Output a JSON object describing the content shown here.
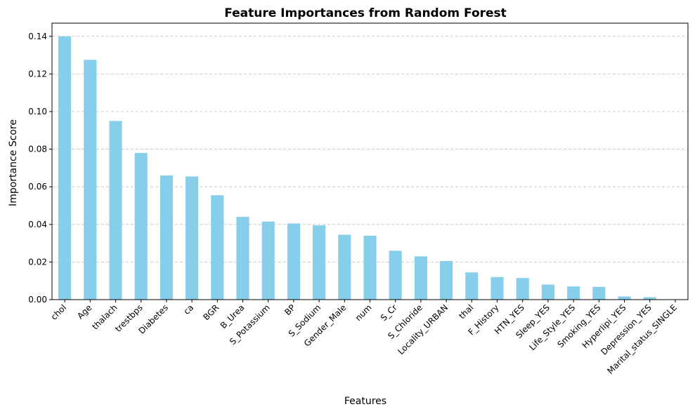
{
  "chart_data": {
    "type": "bar",
    "title": "Feature Importances from Random Forest",
    "xlabel": "Features",
    "ylabel": "Importance Score",
    "ylim": [
      0,
      0.147
    ],
    "yticks": [
      "0.00",
      "0.02",
      "0.04",
      "0.06",
      "0.08",
      "0.10",
      "0.12",
      "0.14"
    ],
    "grid": "y-dashed",
    "bar_color": "#87CEEB",
    "categories": [
      "chol",
      "Age",
      "thalach",
      "trestbps",
      "Diabetes",
      "ca",
      "BGR",
      "B_Urea",
      "S_Potassium",
      "BP",
      "S_Sodium",
      "Gender_Male",
      "num",
      "S_Cr",
      "S_Chloride",
      "Locality_URBAN",
      "thal",
      "F_History",
      "HTN_YES",
      "Sleep_YES",
      "Life_Style_YES",
      "Smoking_YES",
      "Hyperlipi_YES",
      "Depression_YES",
      "Marital_status_SINGLE"
    ],
    "values": [
      0.14,
      0.1275,
      0.095,
      0.078,
      0.066,
      0.0655,
      0.0555,
      0.044,
      0.0415,
      0.0405,
      0.0395,
      0.0345,
      0.034,
      0.026,
      0.023,
      0.0205,
      0.0145,
      0.012,
      0.0115,
      0.008,
      0.007,
      0.0068,
      0.0017,
      0.0013,
      0.0001
    ]
  }
}
